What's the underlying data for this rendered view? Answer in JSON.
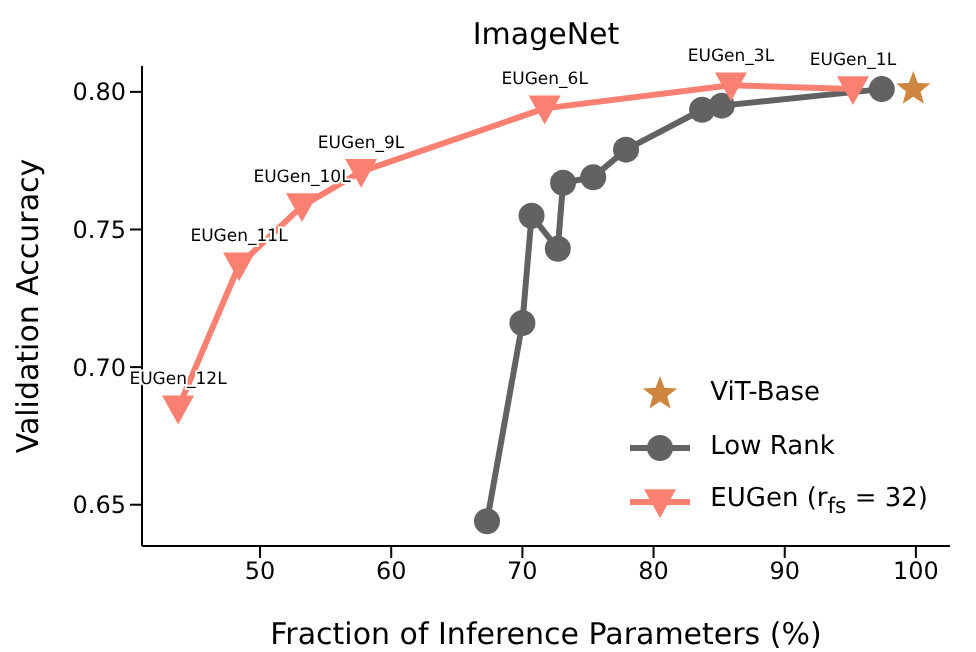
{
  "chart_data": {
    "type": "line",
    "title": "ImageNet",
    "xlabel": "Fraction of Inference Parameters (%)",
    "ylabel": "Validation Accuracy",
    "xlim": [
      41,
      102.6
    ],
    "xticks": [
      50,
      60,
      70,
      80,
      90,
      100
    ],
    "ylim": [
      0.635,
      0.8094
    ],
    "yticks": [
      {
        "value": 0.65,
        "label": "0.65"
      },
      {
        "value": 0.7,
        "label": "0.70"
      },
      {
        "value": 0.75,
        "label": "0.75"
      },
      {
        "value": 0.8,
        "label": "0.80"
      }
    ],
    "grid": false,
    "legend": "bottom right",
    "series": [
      {
        "name": "ViT-Base",
        "type": "scatter",
        "marker": "star",
        "color": "#cd853f",
        "x": [
          99.8
        ],
        "values": [
          0.801
        ]
      },
      {
        "name": "Low Rank",
        "type": "line",
        "marker": "circle",
        "color": "#626262",
        "x": [
          67.3,
          70.0,
          70.7,
          72.7,
          73.1,
          75.4,
          77.9,
          83.7,
          85.2,
          97.4
        ],
        "values": [
          0.644,
          0.716,
          0.755,
          0.743,
          0.767,
          0.769,
          0.779,
          0.7935,
          0.795,
          0.801
        ]
      },
      {
        "name": "EUGen (r$_{fs}$ = 32)",
        "type": "line",
        "marker": "triangle",
        "color": "#fa8072",
        "x": [
          43.75,
          48.4,
          53.2,
          57.7,
          71.7,
          85.9,
          95.2
        ],
        "values": [
          0.685,
          0.737,
          0.7585,
          0.771,
          0.794,
          0.8024,
          0.801
        ]
      }
    ],
    "annotations": [
      {
        "text": "EUGen_12L",
        "x": 43.75,
        "y": 0.685
      },
      {
        "text": "EUGen_11L",
        "x": 48.4,
        "y": 0.737
      },
      {
        "text": "EUGen_10L",
        "x": 53.2,
        "y": 0.7585
      },
      {
        "text": "EUGen_9L",
        "x": 57.7,
        "y": 0.771
      },
      {
        "text": "EUGen_6L",
        "x": 71.7,
        "y": 0.794
      },
      {
        "text": "EUGen_3L",
        "x": 85.9,
        "y": 0.8024
      },
      {
        "text": "EUGen_1L",
        "x": 95.2,
        "y": 0.801
      }
    ]
  }
}
